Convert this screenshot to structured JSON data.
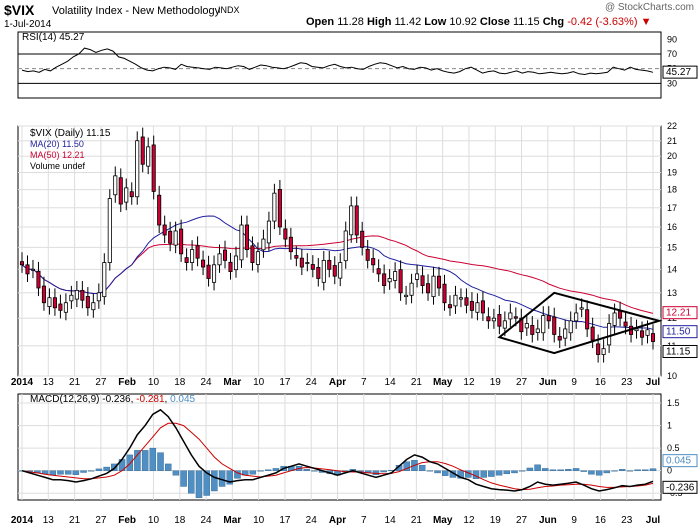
{
  "header": {
    "symbol": "$VIX",
    "name": "Volatility Index - New Methodology",
    "exchange": "INDX",
    "date": "1-Jul-2014",
    "open_label": "Open",
    "open": "11.28",
    "high_label": "High",
    "high": "11.42",
    "low_label": "Low",
    "low": "10.92",
    "close_label": "Close",
    "close": "11.15",
    "chg_label": "Chg",
    "chg": "-0.42 (-3.63%)",
    "chg_arrow": "▼",
    "watermark": "@ StockCharts.com"
  },
  "colors": {
    "up": "#ffffff",
    "down": "#cc0033",
    "ma20": "#1f1f9e",
    "ma50": "#cc0033",
    "macd": "#000000",
    "signal": "#cc0000",
    "hist": "#4f8fc4",
    "annotation": "#000000"
  },
  "legends": {
    "rsi": "RSI(14) 45.27",
    "price": [
      "$VIX (Daily) 11.15",
      "MA(20) 11.50",
      "MA(50) 12.21",
      "Volume undef"
    ],
    "macd_prefix": "MACD(12,26,9)",
    "macd_value": "-0.236",
    "signal_value": "-0.281",
    "hist_value": "0.045"
  },
  "value_tags": {
    "ma50": "12.21",
    "ma20": "11.50",
    "close": "11.15",
    "rsi": "45.27",
    "macd": "-0.236",
    "hist": "0.045"
  },
  "chart_data": [
    {
      "type": "line",
      "id": "rsi",
      "series": [
        {
          "name": "RSI(14)",
          "values": [
            48,
            46,
            47,
            45,
            49,
            47,
            52,
            56,
            60,
            66,
            70,
            78,
            76,
            72,
            75,
            77,
            74,
            66,
            64,
            60,
            56,
            51,
            48,
            47,
            50,
            52,
            51,
            49,
            56,
            53,
            52,
            51,
            50,
            49,
            52,
            51,
            50,
            52,
            54,
            53,
            49,
            52,
            55,
            54,
            52,
            51,
            50,
            52,
            55,
            58,
            57,
            53,
            52,
            51,
            54,
            56,
            53,
            51,
            52,
            50,
            49,
            53,
            56,
            58,
            57,
            54,
            51,
            53,
            50,
            49,
            52,
            51,
            48,
            50,
            47,
            45,
            44,
            46,
            50,
            52,
            48,
            44,
            46,
            47,
            44,
            43,
            45,
            47,
            44,
            46,
            45,
            43,
            44,
            45,
            44,
            43,
            44,
            46,
            43,
            42,
            44,
            43,
            44,
            45,
            52,
            50,
            48,
            52,
            49,
            48,
            47,
            45
          ]
        }
      ],
      "yticks": [
        90,
        70,
        50,
        30
      ],
      "ylim": [
        10,
        100
      ],
      "ref_lines": [
        70,
        30
      ]
    },
    {
      "type": "candlestick",
      "id": "price",
      "x_ticks": [
        "2014",
        "13",
        "21",
        "27",
        "Feb",
        "10",
        "18",
        "24",
        "Mar",
        "10",
        "17",
        "24",
        "Apr",
        "7",
        "14",
        "21",
        "May",
        "12",
        "19",
        "27",
        "Jun",
        "9",
        "16",
        "23",
        "Jul"
      ],
      "y_ticks": [
        10,
        11,
        12,
        13,
        14,
        15,
        16,
        17,
        18,
        19,
        20,
        21,
        22
      ],
      "y_scale": "log",
      "ylim": [
        10,
        22
      ],
      "close": [
        14.2,
        13.8,
        14.0,
        13.2,
        12.6,
        12.8,
        12.4,
        12.3,
        12.6,
        12.9,
        13.1,
        12.7,
        12.4,
        12.6,
        13.0,
        14.3,
        17.5,
        18.8,
        17.2,
        18.1,
        17.6,
        21.0,
        19.5,
        20.6,
        17.9,
        16.1,
        15.6,
        15.2,
        15.8,
        14.7,
        14.3,
        14.9,
        14.5,
        14.1,
        13.6,
        14.2,
        14.7,
        14.4,
        13.9,
        14.6,
        16.1,
        14.9,
        14.3,
        14.8,
        15.4,
        16.3,
        17.8,
        16.0,
        15.4,
        14.8,
        14.5,
        14.1,
        14.3,
        14.0,
        13.6,
        14.4,
        14.0,
        13.7,
        14.3,
        15.8,
        17.1,
        15.6,
        15.0,
        14.4,
        14.2,
        13.8,
        13.3,
        13.6,
        13.9,
        13.0,
        12.9,
        13.4,
        13.8,
        13.3,
        13.0,
        13.7,
        13.2,
        12.6,
        12.4,
        12.9,
        12.8,
        12.5,
        12.3,
        12.6,
        12.2,
        11.9,
        12.0,
        11.7,
        11.9,
        12.2,
        12.0,
        11.5,
        11.8,
        11.4,
        11.6,
        12.1,
        11.9,
        11.4,
        11.2,
        11.6,
        11.9,
        12.2,
        12.4,
        11.6,
        11.2,
        10.7,
        10.9,
        11.8,
        12.2,
        12.0,
        11.7,
        11.4,
        11.6,
        11.3,
        11.57,
        11.15
      ]
    },
    {
      "type": "line",
      "id": "macd",
      "series": [
        {
          "name": "MACD(12,26,9)",
          "values": [
            0,
            -0.05,
            -0.1,
            -0.15,
            -0.2,
            -0.2,
            -0.22,
            -0.25,
            -0.22,
            -0.18,
            -0.12,
            -0.06,
            0.05,
            0.25,
            0.5,
            0.8,
            1.0,
            1.25,
            1.35,
            1.2,
            0.95,
            0.65,
            0.35,
            0.1,
            -0.05,
            -0.15,
            -0.2,
            -0.25,
            -0.22,
            -0.2,
            -0.2,
            -0.15,
            -0.1,
            -0.05,
            0.05,
            0.1,
            0.15,
            0.1,
            0.05,
            0.0,
            -0.05,
            -0.1,
            -0.05,
            0,
            -0.05,
            -0.1,
            -0.15,
            -0.1,
            -0.05,
            0.1,
            0.25,
            0.35,
            0.3,
            0.2,
            0.15,
            0.05,
            -0.05,
            -0.15,
            -0.2,
            -0.3,
            -0.35,
            -0.4,
            -0.42,
            -0.43,
            -0.45,
            -0.42,
            -0.35,
            -0.25,
            -0.3,
            -0.32,
            -0.3,
            -0.28,
            -0.25,
            -0.32,
            -0.4,
            -0.45,
            -0.42,
            -0.38,
            -0.33,
            -0.35,
            -0.32,
            -0.3,
            -0.236
          ]
        },
        {
          "name": "Signal",
          "values": [
            0,
            -0.03,
            -0.05,
            -0.08,
            -0.1,
            -0.12,
            -0.14,
            -0.16,
            -0.18,
            -0.18,
            -0.16,
            -0.14,
            -0.1,
            0.0,
            0.15,
            0.35,
            0.55,
            0.75,
            0.95,
            1.05,
            1.05,
            1.0,
            0.85,
            0.7,
            0.5,
            0.3,
            0.15,
            0.05,
            -0.05,
            -0.1,
            -0.12,
            -0.14,
            -0.12,
            -0.1,
            -0.05,
            0.0,
            0.05,
            0.07,
            0.06,
            0.04,
            0.02,
            0.0,
            -0.02,
            -0.03,
            -0.03,
            -0.05,
            -0.06,
            -0.07,
            -0.06,
            -0.02,
            0.05,
            0.12,
            0.18,
            0.2,
            0.2,
            0.16,
            0.1,
            0.02,
            -0.05,
            -0.12,
            -0.2,
            -0.27,
            -0.32,
            -0.36,
            -0.4,
            -0.42,
            -0.41,
            -0.38,
            -0.35,
            -0.34,
            -0.32,
            -0.31,
            -0.3,
            -0.3,
            -0.32,
            -0.35,
            -0.37,
            -0.37,
            -0.36,
            -0.35,
            -0.34,
            -0.32,
            -0.281
          ]
        }
      ],
      "yticks": [
        1.5,
        1.0,
        0.5,
        0.0,
        -0.5
      ],
      "ylim": [
        -0.65,
        1.7
      ]
    }
  ]
}
